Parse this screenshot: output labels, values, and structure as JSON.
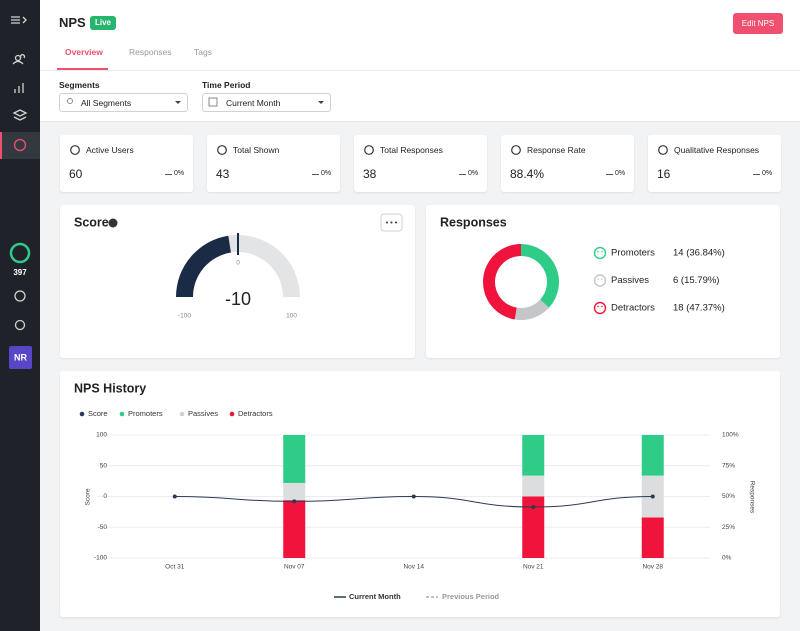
{
  "sidebar": {
    "credits": "397",
    "avatar": "NR"
  },
  "header": {
    "title": "NPS",
    "status": "Live",
    "button": "Edit NPS"
  },
  "tabs": [
    "Overview",
    "Responses",
    "Tags"
  ],
  "filters": [
    {
      "label": "Segments",
      "value": "All Segments"
    },
    {
      "label": "Time Period",
      "value": "Current Month"
    }
  ],
  "stats": [
    {
      "label": "Active Users",
      "value": 60,
      "change": "0%"
    },
    {
      "label": "Total Shown",
      "value": 43,
      "change": "0%"
    },
    {
      "label": "Total Responses",
      "value": 38,
      "change": "0%"
    },
    {
      "label": "Response Rate",
      "value": "88.4%",
      "change": "0%"
    },
    {
      "label": "Qualitative Responses",
      "value": 16,
      "change": "0%"
    }
  ],
  "chart_data": [
    {
      "type": "gauge",
      "title": "Score",
      "value": -10,
      "ylim": [
        -100,
        100
      ],
      "yticks": [
        -100,
        0,
        100
      ],
      "color": "#1c2b45",
      "track_color": "#e3e4e6"
    },
    {
      "type": "pie",
      "title": "Responses",
      "categories": [
        "Promoters",
        "Passives",
        "Detractors"
      ],
      "values": [
        14,
        6,
        18
      ],
      "value_labels": [
        "14 (36.84%)",
        "6 (15.79%)",
        "18 (47.37%)"
      ],
      "colors": [
        "#2ecc87",
        "#c4c6c9",
        "#f0143c"
      ]
    },
    {
      "type": "combo",
      "title": "NPS History",
      "categories": [
        "Oct 31",
        "Nov 07",
        "Nov 14",
        "Nov 21",
        "Nov 28"
      ],
      "series": [
        {
          "name": "Score",
          "type": "line",
          "color": "#2b3a52",
          "values": [
            0,
            -8,
            0,
            -17,
            0
          ]
        },
        {
          "name": "Promoters",
          "type": "bar",
          "axis": "y2",
          "color": "#2ecc87",
          "values": [
            null,
            39,
            null,
            33,
            33
          ]
        },
        {
          "name": "Passives",
          "type": "bar",
          "axis": "y2",
          "color": "#dcdddf",
          "values": [
            null,
            14,
            null,
            17,
            34
          ]
        },
        {
          "name": "Detractors",
          "type": "bar",
          "axis": "y2",
          "color": "#f0143c",
          "values": [
            null,
            47,
            null,
            50,
            33
          ]
        }
      ],
      "ylabel": "Score",
      "y2label": "Responses",
      "ylim": [
        -100,
        100
      ],
      "yticks": [
        -100,
        -50,
        0,
        50,
        100
      ],
      "y2lim": [
        0,
        100
      ],
      "y2ticks": [
        {
          "value": 0,
          "label": "0%"
        },
        {
          "value": 25,
          "label": "25%"
        },
        {
          "value": 50,
          "label": "50%"
        },
        {
          "value": 75,
          "label": "75%"
        },
        {
          "value": 100,
          "label": "100%"
        }
      ],
      "grid": true,
      "period_legend": [
        "Current Month",
        "Previous Period"
      ]
    }
  ]
}
